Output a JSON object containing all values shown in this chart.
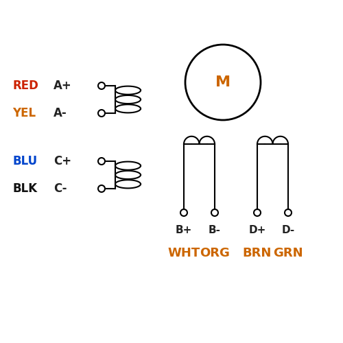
{
  "bg_color": "#ffffff",
  "line_color": "#000000",
  "label_color_dark": "#222222",
  "color_labels": [
    "RED",
    "YEL",
    "BLU",
    "BLK"
  ],
  "signal_labels": [
    "A+",
    "A-",
    "C+",
    "C-"
  ],
  "color_label_colors": [
    "#cc2200",
    "#cc6600",
    "#0044cc",
    "#111111"
  ],
  "motor_label": "M",
  "motor_color": "#cc6600",
  "bottom_signal_B": [
    "B+",
    "B-"
  ],
  "bottom_signal_D": [
    "D+",
    "D-"
  ],
  "bottom_color_B": [
    "WHT",
    "ORG"
  ],
  "bottom_color_D": [
    "BRN",
    "GRN"
  ],
  "bottom_text_color": "#cc6600"
}
